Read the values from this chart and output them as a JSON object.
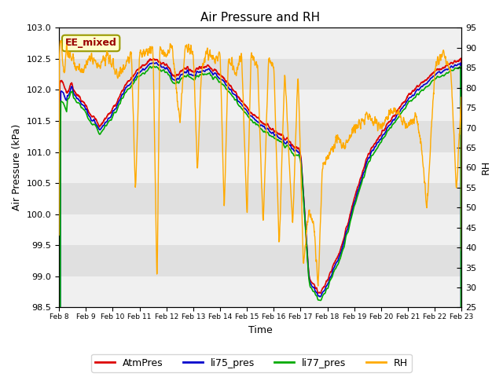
{
  "title": "Air Pressure and RH",
  "xlabel": "Time",
  "ylabel_left": "Air Pressure (kPa)",
  "ylabel_right": "RH",
  "ylim_left": [
    98.5,
    103.0
  ],
  "ylim_right": [
    25,
    95
  ],
  "yticks_left": [
    98.5,
    99.0,
    99.5,
    100.0,
    100.5,
    101.0,
    101.5,
    102.0,
    102.5,
    103.0
  ],
  "yticks_right": [
    25,
    30,
    35,
    40,
    45,
    50,
    55,
    60,
    65,
    70,
    75,
    80,
    85,
    90,
    95
  ],
  "xtick_labels": [
    "Feb 8",
    "Feb 9",
    "Feb 10",
    "Feb 11",
    "Feb 12",
    "Feb 13",
    "Feb 14",
    "Feb 15",
    "Feb 16",
    "Feb 17",
    "Feb 18",
    "Feb 19",
    "Feb 20",
    "Feb 21",
    "Feb 22",
    "Feb 23"
  ],
  "annotation_text": "EE_mixed",
  "annotation_color": "#990000",
  "annotation_bg": "#ffffcc",
  "annotation_edge": "#999900",
  "bg_color": "#ffffff",
  "plot_bg_color": "#e0e0e0",
  "band_light": "#f0f0f0",
  "band_dark": "#e0e0e0",
  "color_atm": "#dd0000",
  "color_li75": "#0000cc",
  "color_li77": "#00aa00",
  "color_rh": "#ffaa00",
  "legend_labels": [
    "AtmPres",
    "li75_pres",
    "li77_pres",
    "RH"
  ],
  "lw_pressure": 1.2,
  "lw_rh": 1.0
}
